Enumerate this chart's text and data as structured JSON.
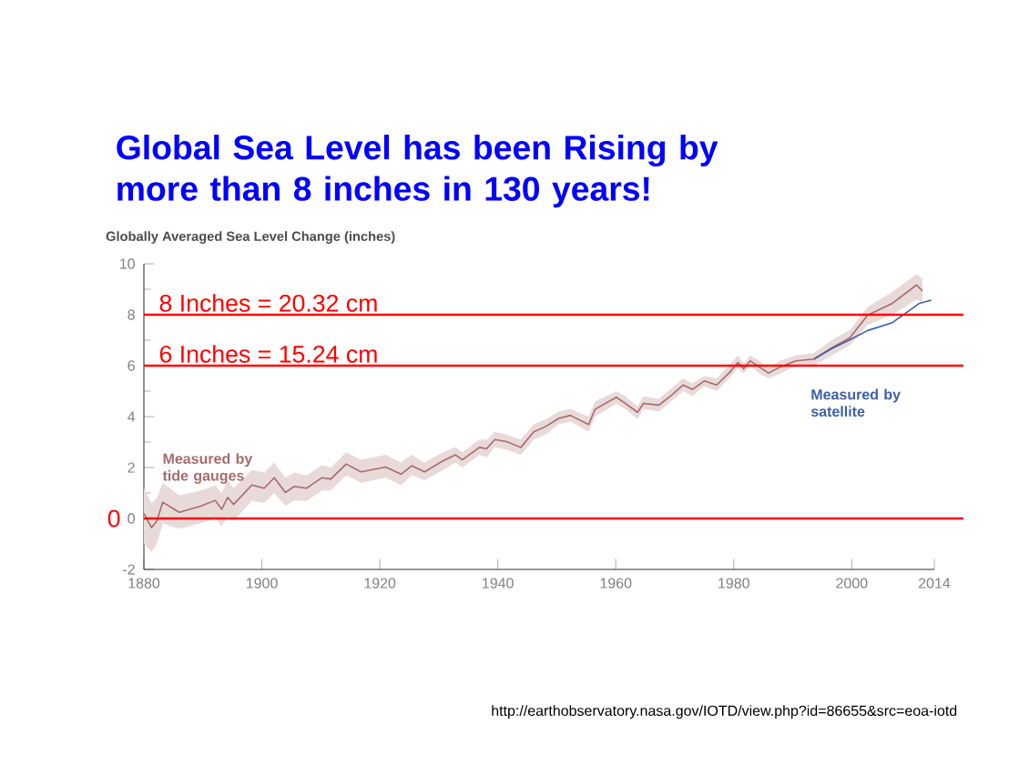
{
  "chart_data": {
    "type": "line",
    "title": "Global Sea Level has been Rising by more than 8 inches in 130 years!",
    "subtitle": "Globally Averaged Sea Level Change (inches)",
    "xlim": [
      1880,
      2014
    ],
    "xticks": [
      1880,
      1900,
      1920,
      1940,
      1960,
      1980,
      2000,
      2014
    ],
    "ylim": [
      -2,
      10
    ],
    "yticks": [
      -2,
      0,
      2,
      4,
      6,
      8,
      10
    ],
    "series": [
      {
        "color": "#a86a6a",
        "x": [
          1880,
          1881.3,
          1882.2,
          1883.2,
          1886,
          1889.6,
          1892.1,
          1893.2,
          1894.2,
          1895.2,
          1898.3,
          1900.4,
          1902.1,
          1904,
          1905.5,
          1907.6,
          1910.2,
          1911.7,
          1914.3,
          1916.8,
          1921,
          1923.6,
          1925.4,
          1927.6,
          1930.7,
          1932.8,
          1934,
          1936.9,
          1938.1,
          1939.5,
          1941.5,
          1943.9,
          1946.1,
          1948.2,
          1950.3,
          1952.3,
          1955.4,
          1956.5,
          1960.1,
          1961.6,
          1963.7,
          1964.7,
          1967.3,
          1969.4,
          1971.4,
          1973,
          1975,
          1977.1,
          1979.2,
          1980.7,
          1981.7,
          1982.8,
          1984.3,
          1985.9,
          1987.9,
          1990.5,
          1993.6,
          1996.6,
          1999.7,
          2002.7,
          2006.9,
          2011,
          2012
        ],
        "values": [
          0.2,
          -0.36,
          -0.1,
          0.64,
          0.24,
          0.48,
          0.71,
          0.36,
          0.83,
          0.55,
          1.31,
          1.19,
          1.6,
          1.02,
          1.26,
          1.19,
          1.6,
          1.55,
          2.14,
          1.83,
          2.02,
          1.74,
          2.07,
          1.83,
          2.26,
          2.5,
          2.31,
          2.79,
          2.74,
          3.1,
          3.02,
          2.79,
          3.4,
          3.62,
          3.93,
          4.05,
          3.69,
          4.29,
          4.76,
          4.52,
          4.17,
          4.52,
          4.45,
          4.83,
          5.24,
          5.07,
          5.4,
          5.24,
          5.71,
          6.12,
          5.88,
          6.19,
          5.95,
          5.71,
          5.95,
          6.19,
          6.26,
          6.7,
          7.1,
          7.98,
          8.45,
          9.17,
          8.93
        ],
        "lower": [
          -1,
          -1.3,
          -1,
          -0.2,
          -0.4,
          -0.2,
          0,
          -0.3,
          0.1,
          -0.1,
          0.7,
          0.6,
          1,
          0.5,
          0.7,
          0.7,
          1.1,
          1.1,
          1.7,
          1.4,
          1.6,
          1.3,
          1.7,
          1.5,
          1.9,
          2.2,
          2,
          2.5,
          2.4,
          2.8,
          2.7,
          2.5,
          3.1,
          3.3,
          3.7,
          3.8,
          3.4,
          4,
          4.5,
          4.3,
          3.9,
          4.3,
          4.2,
          4.6,
          5,
          4.8,
          5.2,
          5,
          5.5,
          5.9,
          5.7,
          6,
          5.7,
          5.5,
          5.7,
          6,
          6,
          6.4,
          6.8,
          7.6,
          8,
          8.6,
          8.5
        ],
        "upper": [
          1.2,
          0.6,
          0.8,
          1.4,
          0.9,
          1.1,
          1.3,
          1,
          1.5,
          1.2,
          1.9,
          1.8,
          2.2,
          1.6,
          1.8,
          1.7,
          2.1,
          2,
          2.6,
          2.3,
          2.5,
          2.2,
          2.5,
          2.2,
          2.6,
          2.8,
          2.6,
          3.1,
          3.1,
          3.4,
          3.3,
          3.1,
          3.7,
          3.9,
          4.2,
          4.3,
          4,
          4.6,
          5,
          4.8,
          4.4,
          4.8,
          4.7,
          5.1,
          5.5,
          5.3,
          5.6,
          5.5,
          6,
          6.4,
          6.1,
          6.4,
          6.2,
          5.9,
          6.2,
          6.4,
          6.5,
          7,
          7.4,
          8.3,
          8.9,
          9.6,
          9.4
        ]
      },
      {
        "color": "#3d5fa8",
        "x": [
          1993.6,
          1996.6,
          1999.7,
          2002.7,
          2006.9,
          2008.9,
          2011.5,
          2013.5
        ],
        "values": [
          6.26,
          6.67,
          7.02,
          7.38,
          7.69,
          8.02,
          8.45,
          8.57
        ]
      }
    ],
    "ref_lines": [
      {
        "axis": "y",
        "value": 8,
        "label": "8  Inches = 20.32 cm",
        "color": "#ff0000"
      },
      {
        "axis": "y",
        "value": 6,
        "label": "6  Inches = 15.24 cm",
        "color": "#ff0000"
      },
      {
        "axis": "y",
        "value": 0,
        "label": "0",
        "color": "#ff0000"
      }
    ],
    "annotations": [
      "Measured by tide gauges",
      "Measured by satellite",
      "http://earthobservatory.nasa.gov/IOTD/view.php?id=86655&src=eoa-iotd"
    ],
    "grid": false,
    "marker": "none",
    "line_style": "solid"
  }
}
